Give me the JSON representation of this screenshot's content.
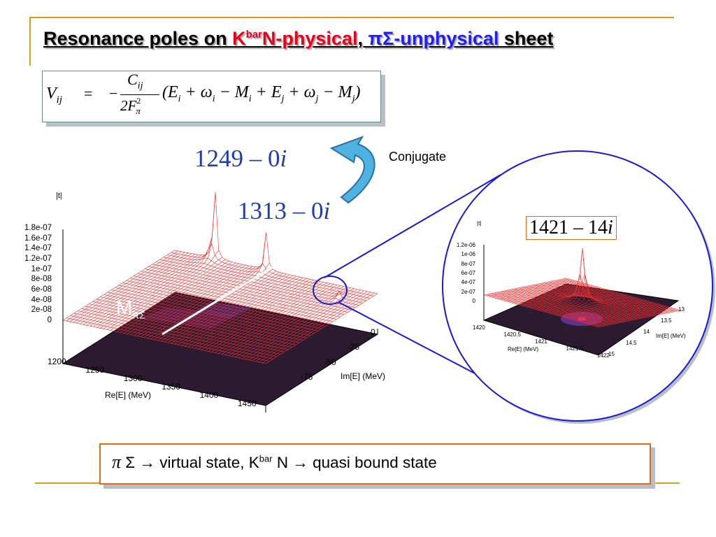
{
  "title": {
    "part1": "Resonance poles on ",
    "kbar_k": "K",
    "kbar_sup": "bar",
    "kbar_rest": "N-physical",
    "comma": ", ",
    "pisigma": "πΣ-unphysical",
    "part3": " sheet"
  },
  "formula": {
    "lhs": "V",
    "lhs_sub": "ij",
    "eq": "=",
    "minus": "−",
    "numerator": "C",
    "numerator_sub": "ij",
    "denominator": "2F",
    "denominator_sup": "2",
    "denominator_sub": "π",
    "bracket": "(E",
    "body": "+ ω",
    "rest": "− M",
    "rest2": "+ E",
    "rest3": "+ ω",
    "rest4": "− M",
    "close": ")",
    "sub_i": "i",
    "sub_j": "j"
  },
  "annotations": {
    "pole1": "1249 – 0",
    "pole2": "1313 – 0",
    "imag_unit": "i",
    "conjugate": "Conjugate",
    "threshold_M": "M",
    "threshold_sub": "πΣ",
    "inset_pole": "1421 – 14",
    "inset_i": "i"
  },
  "chart_data": [
    {
      "type": "surface",
      "zlabel": "|t|",
      "xlabel": "Re[E] (MeV)",
      "ylabel": "Im[E] (MeV)",
      "z_ticks": [
        "1.8e-07",
        "1.6e-07",
        "1.4e-07",
        "1.2e-07",
        "1e-07",
        "8e-08",
        "6e-08",
        "4e-08",
        "2e-08",
        "0"
      ],
      "x_ticks": [
        "1200",
        "1250",
        "1300",
        "1350",
        "1400",
        "1450"
      ],
      "y_ticks": [
        "0",
        "-25",
        "-50",
        "-75"
      ],
      "xlim": [
        1200,
        1450
      ],
      "ylim": [
        -100,
        0
      ],
      "zlim": [
        0,
        1.8e-07
      ],
      "peaks": [
        {
          "re": 1249,
          "im": 0
        },
        {
          "re": 1313,
          "im": 0
        },
        {
          "re": 1421,
          "im": -14
        }
      ]
    },
    {
      "type": "surface",
      "zlabel": "|t|",
      "xlabel": "Re[E] (MeV)",
      "ylabel": "Im[E] (MeV)",
      "z_ticks": [
        "1.2e-06",
        "1e-06",
        "8e-07",
        "6e-07",
        "4e-07",
        "2e-07",
        "0"
      ],
      "x_ticks": [
        "1420",
        "1420.5",
        "1421",
        "1421.5",
        "1422"
      ],
      "y_ticks": [
        "13",
        "13.5",
        "14",
        "14.5",
        "15"
      ],
      "xlim": [
        1420,
        1422
      ],
      "ylim": [
        13,
        15
      ],
      "zlim": [
        0,
        1.2e-06
      ],
      "peaks": [
        {
          "re": 1421,
          "im": -14
        }
      ]
    }
  ],
  "bottom": {
    "pi": "π",
    "sigma": "Σ",
    "arrow": "→",
    "virtual": " virtual state, K",
    "kbar_sup": "bar",
    "n": " N ",
    "arrow2": "→",
    "quasi": " quasi bound state"
  },
  "colors": {
    "accent_line": "#d4a017",
    "title_red": "#e8001c",
    "title_blue": "#1e1ef0",
    "pole_blue": "#1e3cb4",
    "zoom_blue": "#1a1ad0",
    "mesh_red": "#e63030",
    "box_orange": "#e06a1b"
  }
}
